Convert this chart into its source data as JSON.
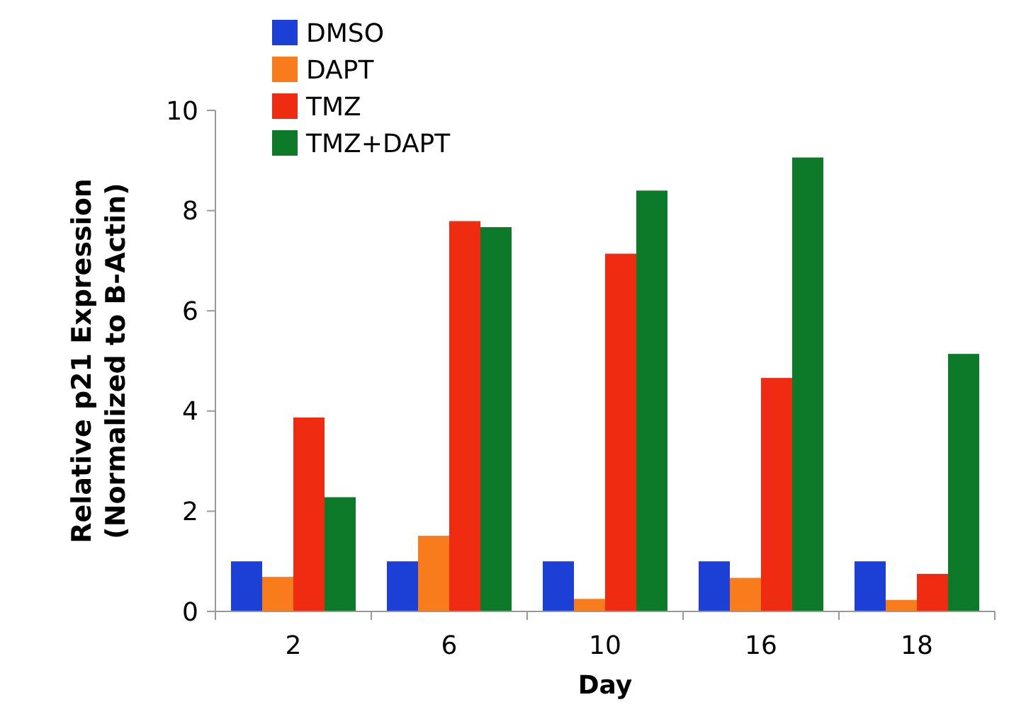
{
  "chart_data": {
    "type": "bar",
    "xlabel": "Day",
    "ylabel": "Relative p21 Expression\n(Normalized to B-Actin)",
    "categories": [
      "2",
      "6",
      "10",
      "16",
      "18"
    ],
    "series": [
      {
        "name": "DMSO",
        "color": "#1c3fd6",
        "values": [
          1.0,
          1.0,
          1.0,
          1.0,
          1.0
        ]
      },
      {
        "name": "DAPT",
        "color": "#f97c1c",
        "values": [
          0.69,
          1.51,
          0.25,
          0.67,
          0.23
        ]
      },
      {
        "name": "TMZ",
        "color": "#ef2c12",
        "values": [
          3.87,
          7.79,
          7.14,
          4.66,
          0.75
        ]
      },
      {
        "name": "TMZ+DAPT",
        "color": "#0d7a2a",
        "values": [
          2.28,
          7.67,
          8.4,
          9.06,
          5.14
        ]
      }
    ],
    "ylim": [
      0,
      10
    ],
    "yticks": [
      0,
      2,
      4,
      6,
      8,
      10
    ],
    "grid": false,
    "legend": "top left"
  }
}
